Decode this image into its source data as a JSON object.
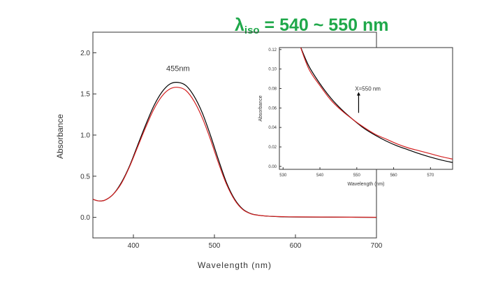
{
  "headline": {
    "symbol": "λ",
    "subscript": "iso",
    "rest": " = 540 ~ 550 nm",
    "color": "#1fa84a"
  },
  "chart_data": [
    {
      "type": "line",
      "xlabel": "Wavelength (nm)",
      "ylabel": "Absorbance",
      "xlim": [
        350,
        700
      ],
      "ylim": [
        -0.25,
        2.25
      ],
      "xticks": [
        400,
        500,
        600,
        700
      ],
      "yticks": [
        0.0,
        0.5,
        1.0,
        1.5,
        2.0
      ],
      "xtick_labels": [
        "400",
        "500",
        "600",
        "700"
      ],
      "ytick_labels": [
        "0.0",
        "0.5",
        "1.0",
        "1.5",
        "2.0"
      ],
      "grid": false,
      "annotations": [
        {
          "text": "455nm",
          "x": 455,
          "y": 1.78
        }
      ],
      "series": [
        {
          "color": "#000000",
          "x": [
            350,
            357,
            365,
            375,
            385,
            395,
            405,
            415,
            425,
            435,
            445,
            455,
            465,
            475,
            485,
            495,
            505,
            515,
            525,
            535,
            545,
            555,
            565,
            575,
            585,
            600,
            650,
            700
          ],
          "y": [
            0.22,
            0.2,
            0.21,
            0.28,
            0.42,
            0.62,
            0.87,
            1.12,
            1.35,
            1.52,
            1.62,
            1.64,
            1.6,
            1.47,
            1.27,
            1.0,
            0.7,
            0.42,
            0.22,
            0.1,
            0.045,
            0.025,
            0.015,
            0.01,
            0.006,
            0.004,
            0.002,
            0.0
          ]
        },
        {
          "color": "#d42020",
          "x": [
            350,
            357,
            365,
            375,
            385,
            395,
            405,
            415,
            425,
            435,
            445,
            455,
            465,
            475,
            485,
            495,
            505,
            515,
            525,
            535,
            545,
            555,
            565,
            575,
            585,
            600,
            650,
            700
          ],
          "y": [
            0.22,
            0.2,
            0.21,
            0.28,
            0.41,
            0.61,
            0.85,
            1.09,
            1.31,
            1.47,
            1.56,
            1.58,
            1.54,
            1.41,
            1.21,
            0.95,
            0.66,
            0.4,
            0.21,
            0.095,
            0.043,
            0.024,
            0.015,
            0.011,
            0.008,
            0.006,
            0.003,
            0.001
          ]
        }
      ]
    },
    {
      "type": "line",
      "xlabel": "Wavelength (nm)",
      "ylabel": "Absorbance",
      "xlim": [
        529,
        576
      ],
      "ylim": [
        -0.003,
        0.122
      ],
      "xticks": [
        530,
        540,
        550,
        560,
        570
      ],
      "yticks": [
        0.0,
        0.02,
        0.04,
        0.06,
        0.08,
        0.1,
        0.12
      ],
      "xtick_labels": [
        "530",
        "540",
        "550",
        "560",
        "570"
      ],
      "ytick_labels": [
        "0.00",
        "0.02",
        "0.04",
        "0.06",
        "0.08",
        "0.10",
        "0.12"
      ],
      "grid": false,
      "annotations": [
        {
          "text": "X=550 nm",
          "x": 553,
          "y": 0.08,
          "arrow_to": [
            550.5,
            0.055
          ]
        }
      ],
      "series": [
        {
          "color": "#000000",
          "x": [
            534.5,
            537,
            540,
            543,
            546,
            549,
            552,
            555,
            558,
            561,
            564,
            567,
            570,
            573,
            576
          ],
          "y": [
            0.125,
            0.103,
            0.085,
            0.07,
            0.058,
            0.048,
            0.039,
            0.032,
            0.026,
            0.021,
            0.017,
            0.013,
            0.0095,
            0.0065,
            0.004
          ]
        },
        {
          "color": "#d42020",
          "x": [
            534.5,
            537,
            540,
            543,
            546,
            549,
            552,
            555,
            558,
            561,
            564,
            567,
            570,
            573,
            576
          ],
          "y": [
            0.125,
            0.1,
            0.083,
            0.068,
            0.057,
            0.048,
            0.04,
            0.033,
            0.028,
            0.023,
            0.019,
            0.016,
            0.013,
            0.01,
            0.0075
          ]
        }
      ]
    }
  ]
}
